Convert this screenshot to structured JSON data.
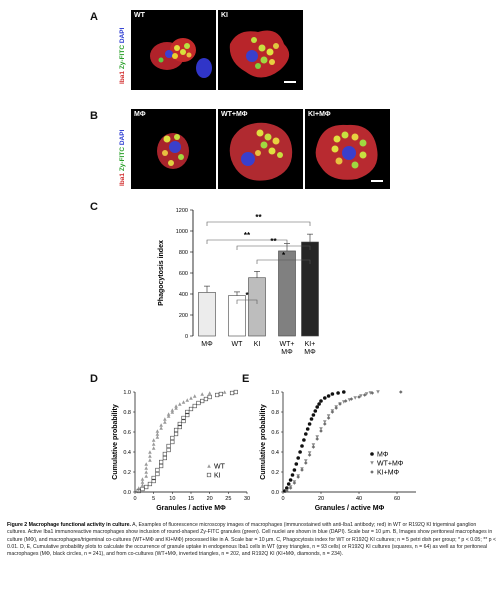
{
  "panels": {
    "A": {
      "letter": "A",
      "side_label": {
        "red": "Iba1",
        "green": "Zy-FITC",
        "blue": "DAPI"
      },
      "images": [
        {
          "label": "WT"
        },
        {
          "label": "KI"
        }
      ]
    },
    "B": {
      "letter": "B",
      "side_label": {
        "red": "Iba1",
        "green": "Zy-FITC",
        "blue": "DAPI"
      },
      "images": [
        {
          "label": "MΦ"
        },
        {
          "label": "WT+MΦ"
        },
        {
          "label": "KI+MΦ"
        }
      ]
    },
    "C": {
      "letter": "C"
    },
    "D": {
      "letter": "D"
    },
    "E": {
      "letter": "E"
    }
  },
  "chart_data": [
    {
      "id": "C",
      "type": "bar",
      "ylabel": "Phagocytosis index",
      "ylim": [
        0,
        1200
      ],
      "yticks": [
        0,
        200,
        400,
        600,
        800,
        1000,
        1200
      ],
      "categories": [
        "MΦ",
        "WT",
        "KI",
        "WT+\nMΦ",
        "KI+\nMΦ"
      ],
      "values": [
        415,
        385,
        555,
        810,
        895
      ],
      "errors": [
        60,
        35,
        60,
        70,
        75
      ],
      "bar_colors": [
        "#ececec",
        "#ffffff",
        "#bdbdbd",
        "#808080",
        "#262626"
      ],
      "significance": [
        {
          "from": 1,
          "to": 2,
          "label": "*"
        },
        {
          "from": 0,
          "to": 3,
          "label": "**"
        },
        {
          "from": 1,
          "to": 4,
          "label": "**"
        },
        {
          "from": 2,
          "to": 4,
          "label": "*"
        },
        {
          "from": 0,
          "to": 4,
          "label": "**"
        }
      ]
    },
    {
      "id": "D",
      "type": "scatter",
      "xlabel": "Granules / active MΦ",
      "ylabel": "Cumulative probability",
      "xlim": [
        0,
        30
      ],
      "ylim": [
        0,
        1.0
      ],
      "xticks": [
        0,
        5,
        10,
        15,
        20,
        25,
        30
      ],
      "yticks": [
        0.0,
        0.2,
        0.4,
        0.6,
        0.8,
        1.0
      ],
      "series": [
        {
          "name": "WT",
          "marker": "triangle",
          "points": [
            [
              1,
              0.01
            ],
            [
              1,
              0.04
            ],
            [
              2,
              0.07
            ],
            [
              2,
              0.1
            ],
            [
              2,
              0.13
            ],
            [
              3,
              0.16
            ],
            [
              3,
              0.2
            ],
            [
              3,
              0.24
            ],
            [
              3,
              0.28
            ],
            [
              4,
              0.32
            ],
            [
              4,
              0.36
            ],
            [
              4,
              0.4
            ],
            [
              5,
              0.44
            ],
            [
              5,
              0.48
            ],
            [
              5,
              0.52
            ],
            [
              6,
              0.55
            ],
            [
              6,
              0.58
            ],
            [
              6,
              0.61
            ],
            [
              7,
              0.64
            ],
            [
              7,
              0.67
            ],
            [
              8,
              0.7
            ],
            [
              8,
              0.73
            ],
            [
              9,
              0.76
            ],
            [
              9,
              0.78
            ],
            [
              10,
              0.8
            ],
            [
              10,
              0.82
            ],
            [
              11,
              0.84
            ],
            [
              11,
              0.86
            ],
            [
              12,
              0.88
            ],
            [
              13,
              0.9
            ],
            [
              14,
              0.92
            ],
            [
              15,
              0.94
            ],
            [
              16,
              0.96
            ],
            [
              18,
              0.98
            ],
            [
              20,
              0.99
            ],
            [
              24,
              1.0
            ]
          ]
        },
        {
          "name": "KI",
          "marker": "square",
          "points": [
            [
              1,
              0.01
            ],
            [
              2,
              0.03
            ],
            [
              3,
              0.05
            ],
            [
              4,
              0.08
            ],
            [
              5,
              0.11
            ],
            [
              5,
              0.14
            ],
            [
              6,
              0.18
            ],
            [
              6,
              0.22
            ],
            [
              7,
              0.26
            ],
            [
              7,
              0.3
            ],
            [
              8,
              0.34
            ],
            [
              8,
              0.38
            ],
            [
              9,
              0.42
            ],
            [
              9,
              0.46
            ],
            [
              10,
              0.5
            ],
            [
              10,
              0.54
            ],
            [
              11,
              0.58
            ],
            [
              11,
              0.62
            ],
            [
              12,
              0.65
            ],
            [
              12,
              0.68
            ],
            [
              13,
              0.71
            ],
            [
              13,
              0.74
            ],
            [
              14,
              0.77
            ],
            [
              14,
              0.8
            ],
            [
              15,
              0.83
            ],
            [
              16,
              0.86
            ],
            [
              17,
              0.89
            ],
            [
              18,
              0.91
            ],
            [
              19,
              0.93
            ],
            [
              20,
              0.95
            ],
            [
              22,
              0.97
            ],
            [
              23,
              0.98
            ],
            [
              26,
              0.99
            ],
            [
              27,
              1.0
            ]
          ]
        }
      ],
      "legend": "bottom-right"
    },
    {
      "id": "E",
      "type": "scatter",
      "xlabel": "Granules / active MΦ",
      "ylabel": "Cumulative probability",
      "xlim": [
        0,
        70
      ],
      "ylim": [
        0,
        1.0
      ],
      "xticks": [
        0,
        20,
        40,
        60
      ],
      "yticks": [
        0.0,
        0.2,
        0.4,
        0.6,
        0.8,
        1.0
      ],
      "series": [
        {
          "name": "MΦ",
          "marker": "circle",
          "color": "#111111",
          "points": [
            [
              1,
              0.01
            ],
            [
              2,
              0.04
            ],
            [
              3,
              0.08
            ],
            [
              4,
              0.12
            ],
            [
              5,
              0.17
            ],
            [
              6,
              0.22
            ],
            [
              7,
              0.28
            ],
            [
              8,
              0.34
            ],
            [
              9,
              0.4
            ],
            [
              10,
              0.46
            ],
            [
              11,
              0.52
            ],
            [
              12,
              0.58
            ],
            [
              13,
              0.63
            ],
            [
              14,
              0.68
            ],
            [
              15,
              0.73
            ],
            [
              16,
              0.77
            ],
            [
              17,
              0.81
            ],
            [
              18,
              0.85
            ],
            [
              19,
              0.88
            ],
            [
              20,
              0.91
            ],
            [
              22,
              0.94
            ],
            [
              24,
              0.96
            ],
            [
              26,
              0.98
            ],
            [
              29,
              0.99
            ],
            [
              32,
              1.0
            ]
          ]
        },
        {
          "name": "WT+MΦ",
          "marker": "triangle-down",
          "color": "#8c8c8c",
          "points": [
            [
              2,
              0.01
            ],
            [
              4,
              0.05
            ],
            [
              6,
              0.1
            ],
            [
              8,
              0.16
            ],
            [
              10,
              0.23
            ],
            [
              12,
              0.31
            ],
            [
              14,
              0.39
            ],
            [
              16,
              0.47
            ],
            [
              18,
              0.55
            ],
            [
              20,
              0.63
            ],
            [
              22,
              0.7
            ],
            [
              24,
              0.76
            ],
            [
              26,
              0.81
            ],
            [
              28,
              0.85
            ],
            [
              30,
              0.88
            ],
            [
              32,
              0.9
            ],
            [
              35,
              0.92
            ],
            [
              38,
              0.94
            ],
            [
              41,
              0.96
            ],
            [
              44,
              0.98
            ],
            [
              46,
              0.99
            ],
            [
              50,
              1.0
            ]
          ]
        },
        {
          "name": "KI+MΦ",
          "marker": "diamond",
          "color": "#6e6e6e",
          "points": [
            [
              2,
              0.01
            ],
            [
              4,
              0.04
            ],
            [
              6,
              0.09
            ],
            [
              8,
              0.15
            ],
            [
              10,
              0.22
            ],
            [
              12,
              0.29
            ],
            [
              14,
              0.37
            ],
            [
              16,
              0.45
            ],
            [
              18,
              0.53
            ],
            [
              20,
              0.61
            ],
            [
              22,
              0.68
            ],
            [
              24,
              0.74
            ],
            [
              26,
              0.8
            ],
            [
              28,
              0.84
            ],
            [
              30,
              0.88
            ],
            [
              33,
              0.91
            ],
            [
              36,
              0.93
            ],
            [
              40,
              0.95
            ],
            [
              43,
              0.97
            ],
            [
              47,
              0.99
            ],
            [
              62,
              1.0
            ]
          ]
        }
      ],
      "legend": "bottom-right"
    }
  ],
  "caption": {
    "title": "Figure 2 Macrophage functional activity in culture.",
    "text": " A, Examples of fluorescence microscopy images of macrophages (immunostained with anti-Iba1 antibody; red) in WT or R192Q KI trigeminal ganglion cultures. Active Iba1 immunoreactive macrophages show inclusion of round-shaped Zy-FITC granules (green). Cell nuclei are shown in blue (DAPI). Scale bar = 10 μm. B, Images show peritoneal macrophages in culture (MΦ), and macrophages/trigeminal co-cultures (WT+MΦ and KI+MΦ) processed like in A. Scale bar = 10 μm. C, Phagocytosis index for WT or R192Q KI cultures; n = 5 petri dish per group; * p < 0.05; ** p < 0.01. D, E, Cumulative probability plots to calculate the occurrence of granule uptake in endogenous Iba1 cells in WT (grey triangles, n = 93 cells) or R192Q KI cultures (squares, n = 64) as well as for peritoneal macrophages (MΦ, black circles, n = 241), and from co-cultures (WT+MΦ, inverted triangles, n = 202, and R192Q KI (KI+MΦ, diamonds, n = 234)."
  }
}
